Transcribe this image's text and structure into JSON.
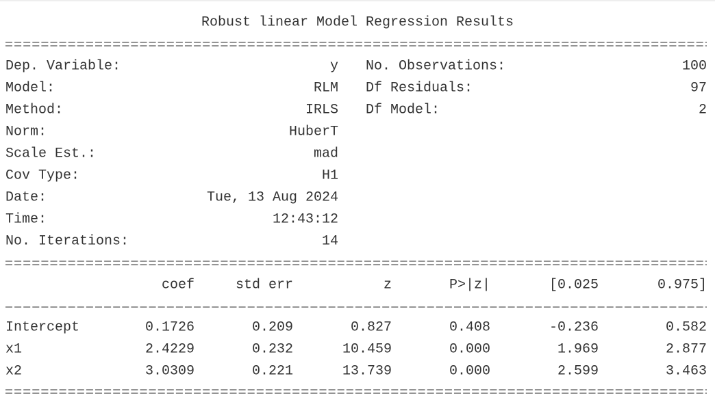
{
  "title": "Robust linear Model Regression Results",
  "info": {
    "left": [
      {
        "label": "Dep. Variable:",
        "value": "y"
      },
      {
        "label": "Model:",
        "value": "RLM"
      },
      {
        "label": "Method:",
        "value": "IRLS"
      },
      {
        "label": "Norm:",
        "value": "HuberT"
      },
      {
        "label": "Scale Est.:",
        "value": "mad"
      },
      {
        "label": "Cov Type:",
        "value": "H1"
      },
      {
        "label": "Date:",
        "value": "Tue, 13 Aug 2024"
      },
      {
        "label": "Time:",
        "value": "12:43:12"
      },
      {
        "label": "No. Iterations:",
        "value": "14"
      }
    ],
    "right": [
      {
        "label": "No. Observations:",
        "value": "100"
      },
      {
        "label": "Df Residuals:",
        "value": "97"
      },
      {
        "label": "Df Model:",
        "value": "2"
      }
    ]
  },
  "table": {
    "header": [
      "coef",
      "std err",
      "z",
      "P>|z|",
      "[0.025",
      "0.975]"
    ],
    "rows": [
      [
        "Intercept",
        "0.1726",
        "0.209",
        "0.827",
        "0.408",
        "-0.236",
        "0.582"
      ],
      [
        "x1",
        "2.4229",
        "0.232",
        "10.459",
        "0.000",
        "1.969",
        "2.877"
      ],
      [
        "x2",
        "3.0309",
        "0.221",
        "13.739",
        "0.000",
        "2.599",
        "3.463"
      ]
    ]
  }
}
